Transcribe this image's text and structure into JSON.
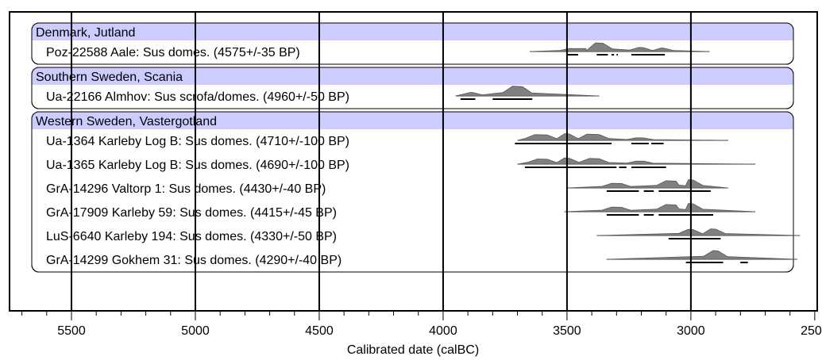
{
  "chart_data": {
    "type": "oxcal-multiplot",
    "xlabel": "Calibrated date (calBC)",
    "xlim": [
      5750,
      2490
    ],
    "xticks": [
      5500,
      5000,
      4500,
      4000,
      3500,
      3000,
      2500
    ],
    "tick_labels": [
      "5500",
      "5000",
      "4500",
      "4000",
      "3500",
      "3000",
      "2500"
    ],
    "vertical_lines": [
      5500,
      5000,
      4500,
      4000,
      3500,
      3000
    ],
    "colors": {
      "group_header": "#ccccff",
      "distribution": "#808080"
    },
    "groups": [
      {
        "name": "Denmark, Jutland",
        "samples": [
          {
            "label": "Poz-22588 Aale: Sus domes. (4575+/-35 BP)",
            "range": [
              3650,
              2925
            ],
            "peaks": [
              [
                3490,
                3460,
                0.3
              ],
              [
                3385,
                3355,
                0.85
              ],
              [
                3210,
                3190,
                0.4
              ],
              [
                3120,
                3110,
                0.35
              ]
            ],
            "hpd": [
              [
                3500,
                3455
              ],
              [
                3380,
                3335
              ],
              [
                3320,
                3310
              ],
              [
                3300,
                3295
              ],
              [
                3240,
                3105
              ]
            ]
          }
        ]
      },
      {
        "name": "Southern Sweden, Scania",
        "samples": [
          {
            "label": "Ua-22166 Almhov: Sus scrofa/domes. (4960+/-50 BP)",
            "range": [
              3950,
              3370
            ],
            "peaks": [
              [
                3890,
                3880,
                0.35
              ],
              [
                3720,
                3680,
                0.95
              ]
            ],
            "hpd": [
              [
                3930,
                3870
              ],
              [
                3800,
                3640
              ]
            ]
          }
        ]
      },
      {
        "name": "Western Sweden, Vastergotland",
        "samples": [
          {
            "label": "Ua-1364 Karleby Log B: Sus domes. (4710+/-100 BP)",
            "range": [
              3700,
              2850
            ],
            "peaks": [
              [
                3630,
                3580,
                0.55
              ],
              [
                3510,
                3490,
                0.65
              ],
              [
                3420,
                3370,
                0.6
              ],
              [
                3220,
                3190,
                0.25
              ]
            ],
            "hpd": [
              [
                3710,
                3320
              ],
              [
                3240,
                3170
              ],
              [
                3160,
                3110
              ]
            ]
          },
          {
            "label": "Ua-1365 Karleby Log B: Sus domes. (4690+/-100 BP)",
            "range": [
              3700,
              2740
            ],
            "peaks": [
              [
                3620,
                3580,
                0.5
              ],
              [
                3510,
                3490,
                0.6
              ],
              [
                3410,
                3370,
                0.55
              ],
              [
                3220,
                3190,
                0.3
              ]
            ],
            "hpd": [
              [
                3670,
                3300
              ],
              [
                3290,
                3260
              ],
              [
                3240,
                3100
              ]
            ]
          },
          {
            "label": "GrA-14296 Valtorp 1: Sus domes. (4430+/-40 BP)",
            "range": [
              3500,
              2850
            ],
            "peaks": [
              [
                3320,
                3280,
                0.45
              ],
              [
                3100,
                3060,
                0.7
              ],
              [
                3010,
                2990,
                0.8
              ]
            ],
            "hpd": [
              [
                3340,
                3210
              ],
              [
                3190,
                3150
              ],
              [
                3130,
                2920
              ]
            ]
          },
          {
            "label": "GrA-17909 Karleby 59: Sus domes. (4415+/-45 BP)",
            "range": [
              3510,
              2740
            ],
            "peaks": [
              [
                3320,
                3280,
                0.45
              ],
              [
                3100,
                3060,
                0.7
              ],
              [
                3010,
                2990,
                0.8
              ]
            ],
            "hpd": [
              [
                3340,
                3210
              ],
              [
                3190,
                3150
              ],
              [
                3130,
                2910
              ]
            ]
          },
          {
            "label": "LuS-6640 Karleby 194: Sus domes. (4330+/-50 BP)",
            "range": [
              3380,
              2560
            ],
            "peaks": [
              [
                3010,
                2990,
                0.6
              ],
              [
                2920,
                2900,
                0.65
              ]
            ],
            "hpd": [
              [
                3090,
                2880
              ]
            ]
          },
          {
            "label": "GrA-14299 Gokhem 31: Sus domes. (4290+/-40 BP)",
            "range": [
              3340,
              2570
            ],
            "peaks": [
              [
                2910,
                2890,
                0.85
              ]
            ],
            "hpd": [
              [
                3020,
                2870
              ],
              [
                2800,
                2770
              ]
            ]
          }
        ]
      }
    ]
  }
}
